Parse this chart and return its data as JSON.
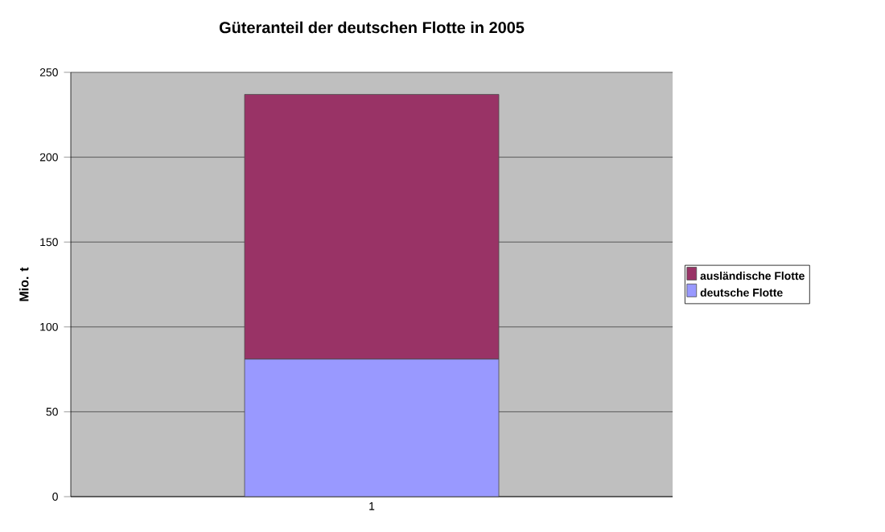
{
  "chart_data": {
    "type": "bar",
    "title": "Güteranteil der deutschen Flotte in 2005",
    "ylabel": "Mio. t",
    "categories": [
      "1"
    ],
    "stacked": true,
    "series": [
      {
        "name": "deutsche Flotte",
        "color": "#9999ff",
        "values": [
          81
        ]
      },
      {
        "name": "ausländische Flotte",
        "color": "#993366",
        "values": [
          156
        ]
      }
    ],
    "ylim": [
      0,
      250
    ],
    "yticks": [
      0,
      50,
      100,
      150,
      200,
      250
    ],
    "grid": "y",
    "legend": "right"
  }
}
